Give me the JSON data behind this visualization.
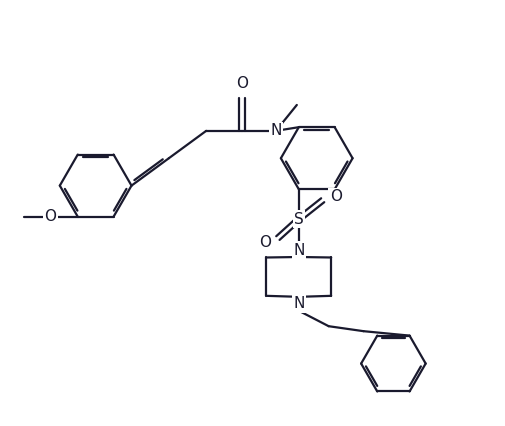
{
  "line_color": "#1a1a2e",
  "bg_color": "#ffffff",
  "line_width": 1.6,
  "font_size": 11,
  "figsize": [
    5.05,
    4.26
  ],
  "dpi": 100,
  "xlim": [
    0,
    10
  ],
  "ylim": [
    0,
    8.5
  ]
}
